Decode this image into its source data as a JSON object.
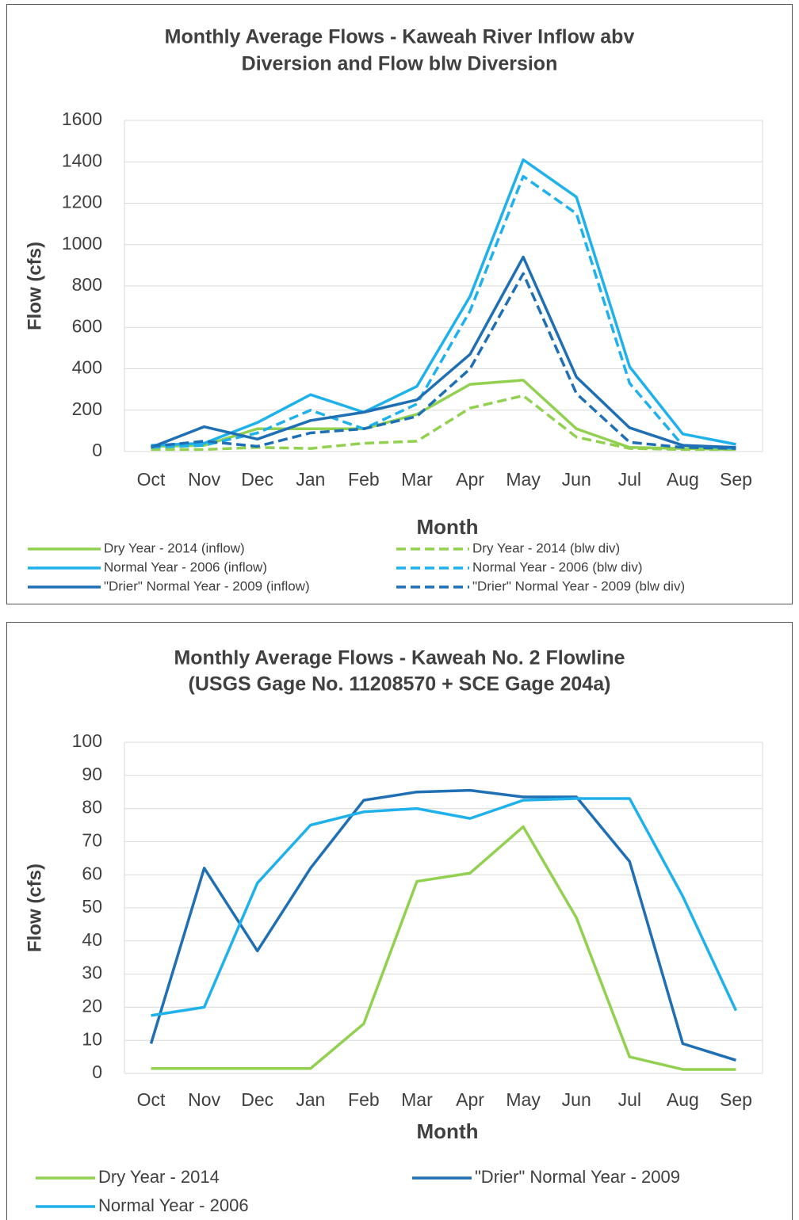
{
  "chart_data": [
    {
      "type": "line",
      "title": [
        "Monthly Average Flows - Kaweah River Inflow abv",
        "Diversion and Flow blw Diversion"
      ],
      "x_label": "Month",
      "y_label": "Flow (cfs)",
      "categories": [
        "Oct",
        "Nov",
        "Dec",
        "Jan",
        "Feb",
        "Mar",
        "Apr",
        "May",
        "Jun",
        "Jul",
        "Aug",
        "Sep"
      ],
      "ylim": [
        0,
        1600
      ],
      "yticks": [
        0,
        200,
        400,
        600,
        800,
        1000,
        1200,
        1400,
        1600
      ],
      "grid": true,
      "series": [
        {
          "name": "Dry Year - 2014 (inflow)",
          "color": "#92d050",
          "dashed": false,
          "values": [
            25,
            30,
            110,
            110,
            110,
            180,
            325,
            345,
            110,
            20,
            15,
            10
          ]
        },
        {
          "name": "Dry Year - 2014 (blw div)",
          "color": "#92d050",
          "dashed": true,
          "values": [
            10,
            10,
            20,
            15,
            40,
            50,
            210,
            270,
            70,
            15,
            10,
            10
          ]
        },
        {
          "name": "Normal Year - 2006 (inflow)",
          "color": "#1fb1eb",
          "dashed": false,
          "values": [
            30,
            40,
            140,
            275,
            190,
            315,
            750,
            1410,
            1230,
            410,
            85,
            35
          ]
        },
        {
          "name": "Normal Year - 2006 (blw div)",
          "color": "#1fb1eb",
          "dashed": true,
          "values": [
            20,
            30,
            90,
            200,
            110,
            230,
            680,
            1330,
            1150,
            330,
            30,
            15
          ]
        },
        {
          "name": "\"Drier\" Normal Year - 2009 (inflow)",
          "color": "#1f6fb5",
          "dashed": false,
          "values": [
            20,
            120,
            60,
            150,
            190,
            250,
            470,
            940,
            360,
            115,
            30,
            20
          ]
        },
        {
          "name": "\"Drier\" Normal Year - 2009 (blw div)",
          "color": "#1f6fb5",
          "dashed": true,
          "values": [
            25,
            50,
            25,
            90,
            110,
            170,
            400,
            860,
            280,
            45,
            20,
            15
          ]
        }
      ]
    },
    {
      "type": "line",
      "title": [
        "Monthly Average Flows - Kaweah No. 2 Flowline",
        "(USGS Gage No. 11208570 + SCE Gage 204a)"
      ],
      "x_label": "Month",
      "y_label": "Flow (cfs)",
      "categories": [
        "Oct",
        "Nov",
        "Dec",
        "Jan",
        "Feb",
        "Mar",
        "Apr",
        "May",
        "Jun",
        "Jul",
        "Aug",
        "Sep"
      ],
      "ylim": [
        0,
        100
      ],
      "yticks": [
        0,
        10,
        20,
        30,
        40,
        50,
        60,
        70,
        80,
        90,
        100
      ],
      "grid": true,
      "series": [
        {
          "name": "Dry Year - 2014",
          "color": "#92d050",
          "dashed": false,
          "values": [
            1.5,
            1.5,
            1.5,
            1.5,
            15,
            58,
            60.5,
            74.5,
            47,
            5,
            1.2,
            1.2
          ]
        },
        {
          "name": "\"Drier\" Normal Year - 2009",
          "color": "#1f6fb5",
          "dashed": false,
          "values": [
            9,
            62,
            37,
            62,
            82.5,
            85,
            85.5,
            83.5,
            83.5,
            64,
            9,
            4
          ]
        },
        {
          "name": "Normal Year - 2006",
          "color": "#1fb1eb",
          "dashed": false,
          "values": [
            17.5,
            20,
            57.5,
            75,
            79,
            80,
            77,
            82.5,
            83,
            83,
            53.5,
            19
          ]
        }
      ]
    }
  ]
}
